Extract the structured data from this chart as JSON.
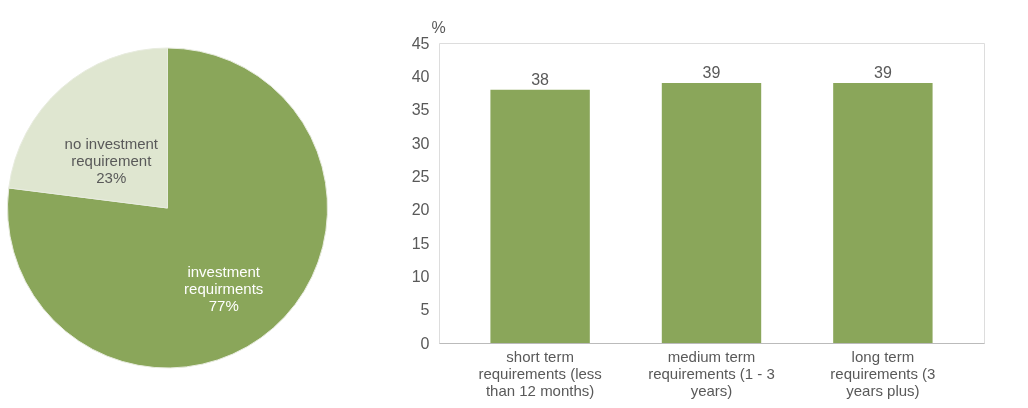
{
  "chart_data": [
    {
      "type": "pie",
      "categories": [
        "investment requirments",
        "no investment requirement"
      ],
      "values": [
        77,
        23
      ],
      "colors": [
        "#8aa65a",
        "#dfe6d0"
      ],
      "value_labels": [
        "77%",
        "23%"
      ],
      "data_labels": true,
      "legend": false
    },
    {
      "type": "bar",
      "categories": [
        "short term requirements (less than 12 months)",
        "medium term requirements (1 - 3 years)",
        "long term requirements (3 years plus)"
      ],
      "values": [
        38,
        39,
        39
      ],
      "color": "#8aa65a",
      "ylabel": "%",
      "ylim": [
        0,
        45
      ],
      "yticks": [
        0,
        5,
        10,
        15,
        20,
        25,
        30,
        35,
        40,
        45
      ],
      "data_labels": true,
      "grid": false
    }
  ]
}
